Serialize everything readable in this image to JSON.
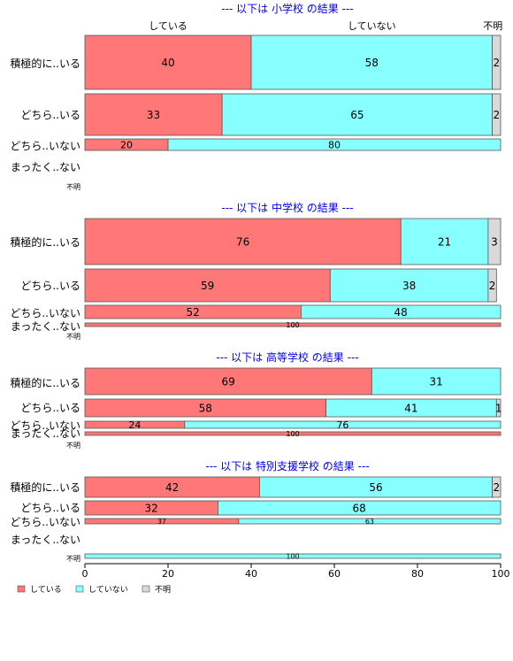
{
  "chart_data": {
    "type": "bar",
    "orientation": "horizontal",
    "stacked": true,
    "xlim": [
      0,
      100
    ],
    "x_ticks": [
      "0",
      "20",
      "40",
      "60",
      "80",
      "100"
    ],
    "column_headers": [
      "している",
      "していない",
      "不明"
    ],
    "legend": {
      "placement": "bottom-left",
      "items": [
        {
          "label": "している",
          "color": "#ff7777"
        },
        {
          "label": "していない",
          "color": "#88ffff"
        },
        {
          "label": "不明",
          "color": "#d9d9d9"
        }
      ]
    },
    "series_colors": {
      "している": "#ff7777",
      "していない": "#88ffff",
      "不明": "#d9d9d9"
    },
    "title_color": "#0000ee",
    "panels": [
      {
        "title": "--- 以下は 小学校 の結果 ---",
        "rows": [
          {
            "label": "積極的に..いる",
            "values": [
              40,
              58,
              2
            ],
            "labels": [
              "40",
              "58",
              "2"
            ]
          },
          {
            "label": "どちら..いる",
            "values": [
              33,
              65,
              2
            ],
            "labels": [
              "33",
              "65",
              "2"
            ]
          },
          {
            "label": "どちら..いない",
            "values": [
              20,
              80,
              0
            ],
            "labels": [
              "20",
              "80",
              ""
            ]
          },
          {
            "label": "まったく..ない",
            "values": null,
            "labels": []
          },
          {
            "label": "不明",
            "values": null,
            "labels": []
          }
        ]
      },
      {
        "title": "--- 以下は 中学校 の結果 ---",
        "rows": [
          {
            "label": "積極的に..いる",
            "values": [
              76,
              21,
              3
            ],
            "labels": [
              "76",
              "21",
              "3"
            ]
          },
          {
            "label": "どちら..いる",
            "values": [
              59,
              38,
              2
            ],
            "labels": [
              "59",
              "38",
              "2"
            ]
          },
          {
            "label": "どちら..いない",
            "values": [
              52,
              48,
              0
            ],
            "labels": [
              "52",
              "48",
              ""
            ]
          },
          {
            "label": "まったく..ない",
            "values": [
              100,
              0,
              0
            ],
            "labels": [
              "100",
              "",
              ""
            ]
          },
          {
            "label": "不明",
            "values": null,
            "labels": []
          }
        ]
      },
      {
        "title": "--- 以下は 高等学校 の結果 ---",
        "rows": [
          {
            "label": "積極的に..いる",
            "values": [
              69,
              31,
              0
            ],
            "labels": [
              "69",
              "31",
              ""
            ]
          },
          {
            "label": "どちら..いる",
            "values": [
              58,
              41,
              1
            ],
            "labels": [
              "58",
              "41",
              "1"
            ]
          },
          {
            "label": "どちら..いない",
            "values": [
              24,
              76,
              0
            ],
            "labels": [
              "24",
              "76",
              ""
            ]
          },
          {
            "label": "まったく..ない",
            "values": [
              100,
              0,
              0
            ],
            "labels": [
              "100",
              "",
              ""
            ]
          },
          {
            "label": "不明",
            "values": null,
            "labels": []
          }
        ]
      },
      {
        "title": "--- 以下は 特別支援学校 の結果 ---",
        "rows": [
          {
            "label": "積極的に..いる",
            "values": [
              42,
              56,
              2
            ],
            "labels": [
              "42",
              "56",
              "2"
            ]
          },
          {
            "label": "どちら..いる",
            "values": [
              32,
              68,
              0
            ],
            "labels": [
              "32",
              "68",
              ""
            ]
          },
          {
            "label": "どちら..いない",
            "values": [
              37,
              63,
              0
            ],
            "labels": [
              "37",
              "63",
              ""
            ]
          },
          {
            "label": "まったく..ない",
            "values": null,
            "labels": []
          },
          {
            "label": "不明",
            "values": [
              0,
              100,
              0
            ],
            "labels": [
              "",
              "100",
              ""
            ]
          }
        ]
      }
    ]
  }
}
